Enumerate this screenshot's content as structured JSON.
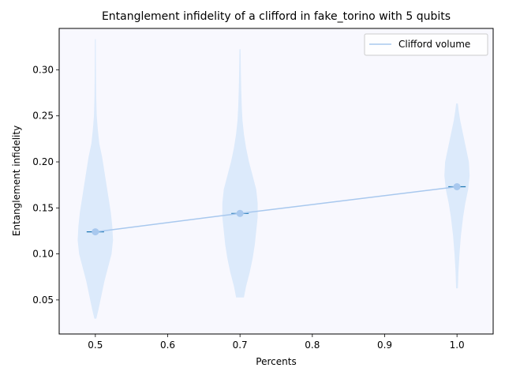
{
  "chart_data": {
    "type": "violin",
    "title": "Entanglement infidelity of a clifford in fake_torino with 5 qubits",
    "xlabel": "Percents",
    "ylabel": "Entanglement infidelity",
    "xlim": [
      0.45,
      1.05
    ],
    "ylim": [
      0.013,
      0.345
    ],
    "xticks": [
      0.5,
      0.6,
      0.7,
      0.8,
      0.9,
      1.0
    ],
    "xtick_labels": [
      "0.5",
      "0.6",
      "0.7",
      "0.8",
      "0.9",
      "1.0"
    ],
    "yticks": [
      0.05,
      0.1,
      0.15,
      0.2,
      0.25,
      0.3
    ],
    "ytick_labels": [
      "0.05",
      "0.10",
      "0.15",
      "0.20",
      "0.25",
      "0.30"
    ],
    "legend": {
      "position": "upper-right",
      "entries": [
        "Clifford volume"
      ]
    },
    "series": [
      {
        "name": "Clifford volume",
        "x": [
          0.5,
          0.7,
          1.0
        ],
        "y": [
          0.124,
          0.144,
          0.173
        ]
      }
    ],
    "violins": [
      {
        "x": 0.5,
        "min": 0.03,
        "max": 0.333,
        "median": 0.124,
        "profile": [
          [
            0.03,
            0.001
          ],
          [
            0.04,
            0.004
          ],
          [
            0.055,
            0.008
          ],
          [
            0.07,
            0.012
          ],
          [
            0.085,
            0.017
          ],
          [
            0.1,
            0.022
          ],
          [
            0.115,
            0.024
          ],
          [
            0.13,
            0.023
          ],
          [
            0.145,
            0.021
          ],
          [
            0.16,
            0.018
          ],
          [
            0.175,
            0.015
          ],
          [
            0.19,
            0.012
          ],
          [
            0.205,
            0.009
          ],
          [
            0.22,
            0.005
          ],
          [
            0.235,
            0.003
          ],
          [
            0.25,
            0.0015
          ],
          [
            0.27,
            0.0008
          ],
          [
            0.29,
            0.0005
          ],
          [
            0.31,
            0.0003
          ],
          [
            0.333,
            0.0002
          ]
        ]
      },
      {
        "x": 0.7,
        "min": 0.053,
        "max": 0.322,
        "median": 0.144,
        "profile": [
          [
            0.053,
            0.005
          ],
          [
            0.065,
            0.008
          ],
          [
            0.08,
            0.013
          ],
          [
            0.095,
            0.017
          ],
          [
            0.11,
            0.02
          ],
          [
            0.125,
            0.022
          ],
          [
            0.14,
            0.024
          ],
          [
            0.155,
            0.024
          ],
          [
            0.17,
            0.022
          ],
          [
            0.185,
            0.017
          ],
          [
            0.2,
            0.012
          ],
          [
            0.215,
            0.008
          ],
          [
            0.23,
            0.005
          ],
          [
            0.245,
            0.003
          ],
          [
            0.26,
            0.002
          ],
          [
            0.28,
            0.0012
          ],
          [
            0.3,
            0.0007
          ],
          [
            0.322,
            0.0003
          ]
        ]
      },
      {
        "x": 1.0,
        "min": 0.063,
        "max": 0.263,
        "median": 0.173,
        "profile": [
          [
            0.063,
            0.0008
          ],
          [
            0.08,
            0.0015
          ],
          [
            0.1,
            0.003
          ],
          [
            0.12,
            0.005
          ],
          [
            0.14,
            0.008
          ],
          [
            0.155,
            0.011
          ],
          [
            0.17,
            0.015
          ],
          [
            0.185,
            0.017
          ],
          [
            0.2,
            0.016
          ],
          [
            0.215,
            0.012
          ],
          [
            0.23,
            0.008
          ],
          [
            0.245,
            0.004
          ],
          [
            0.255,
            0.002
          ],
          [
            0.263,
            0.0008
          ]
        ]
      }
    ],
    "colors": {
      "violin": "#dceafb",
      "line": "#a8c8ee",
      "marker": "#a8c8ee",
      "median": "#1f77b4",
      "background": "#f8f8fe"
    }
  }
}
